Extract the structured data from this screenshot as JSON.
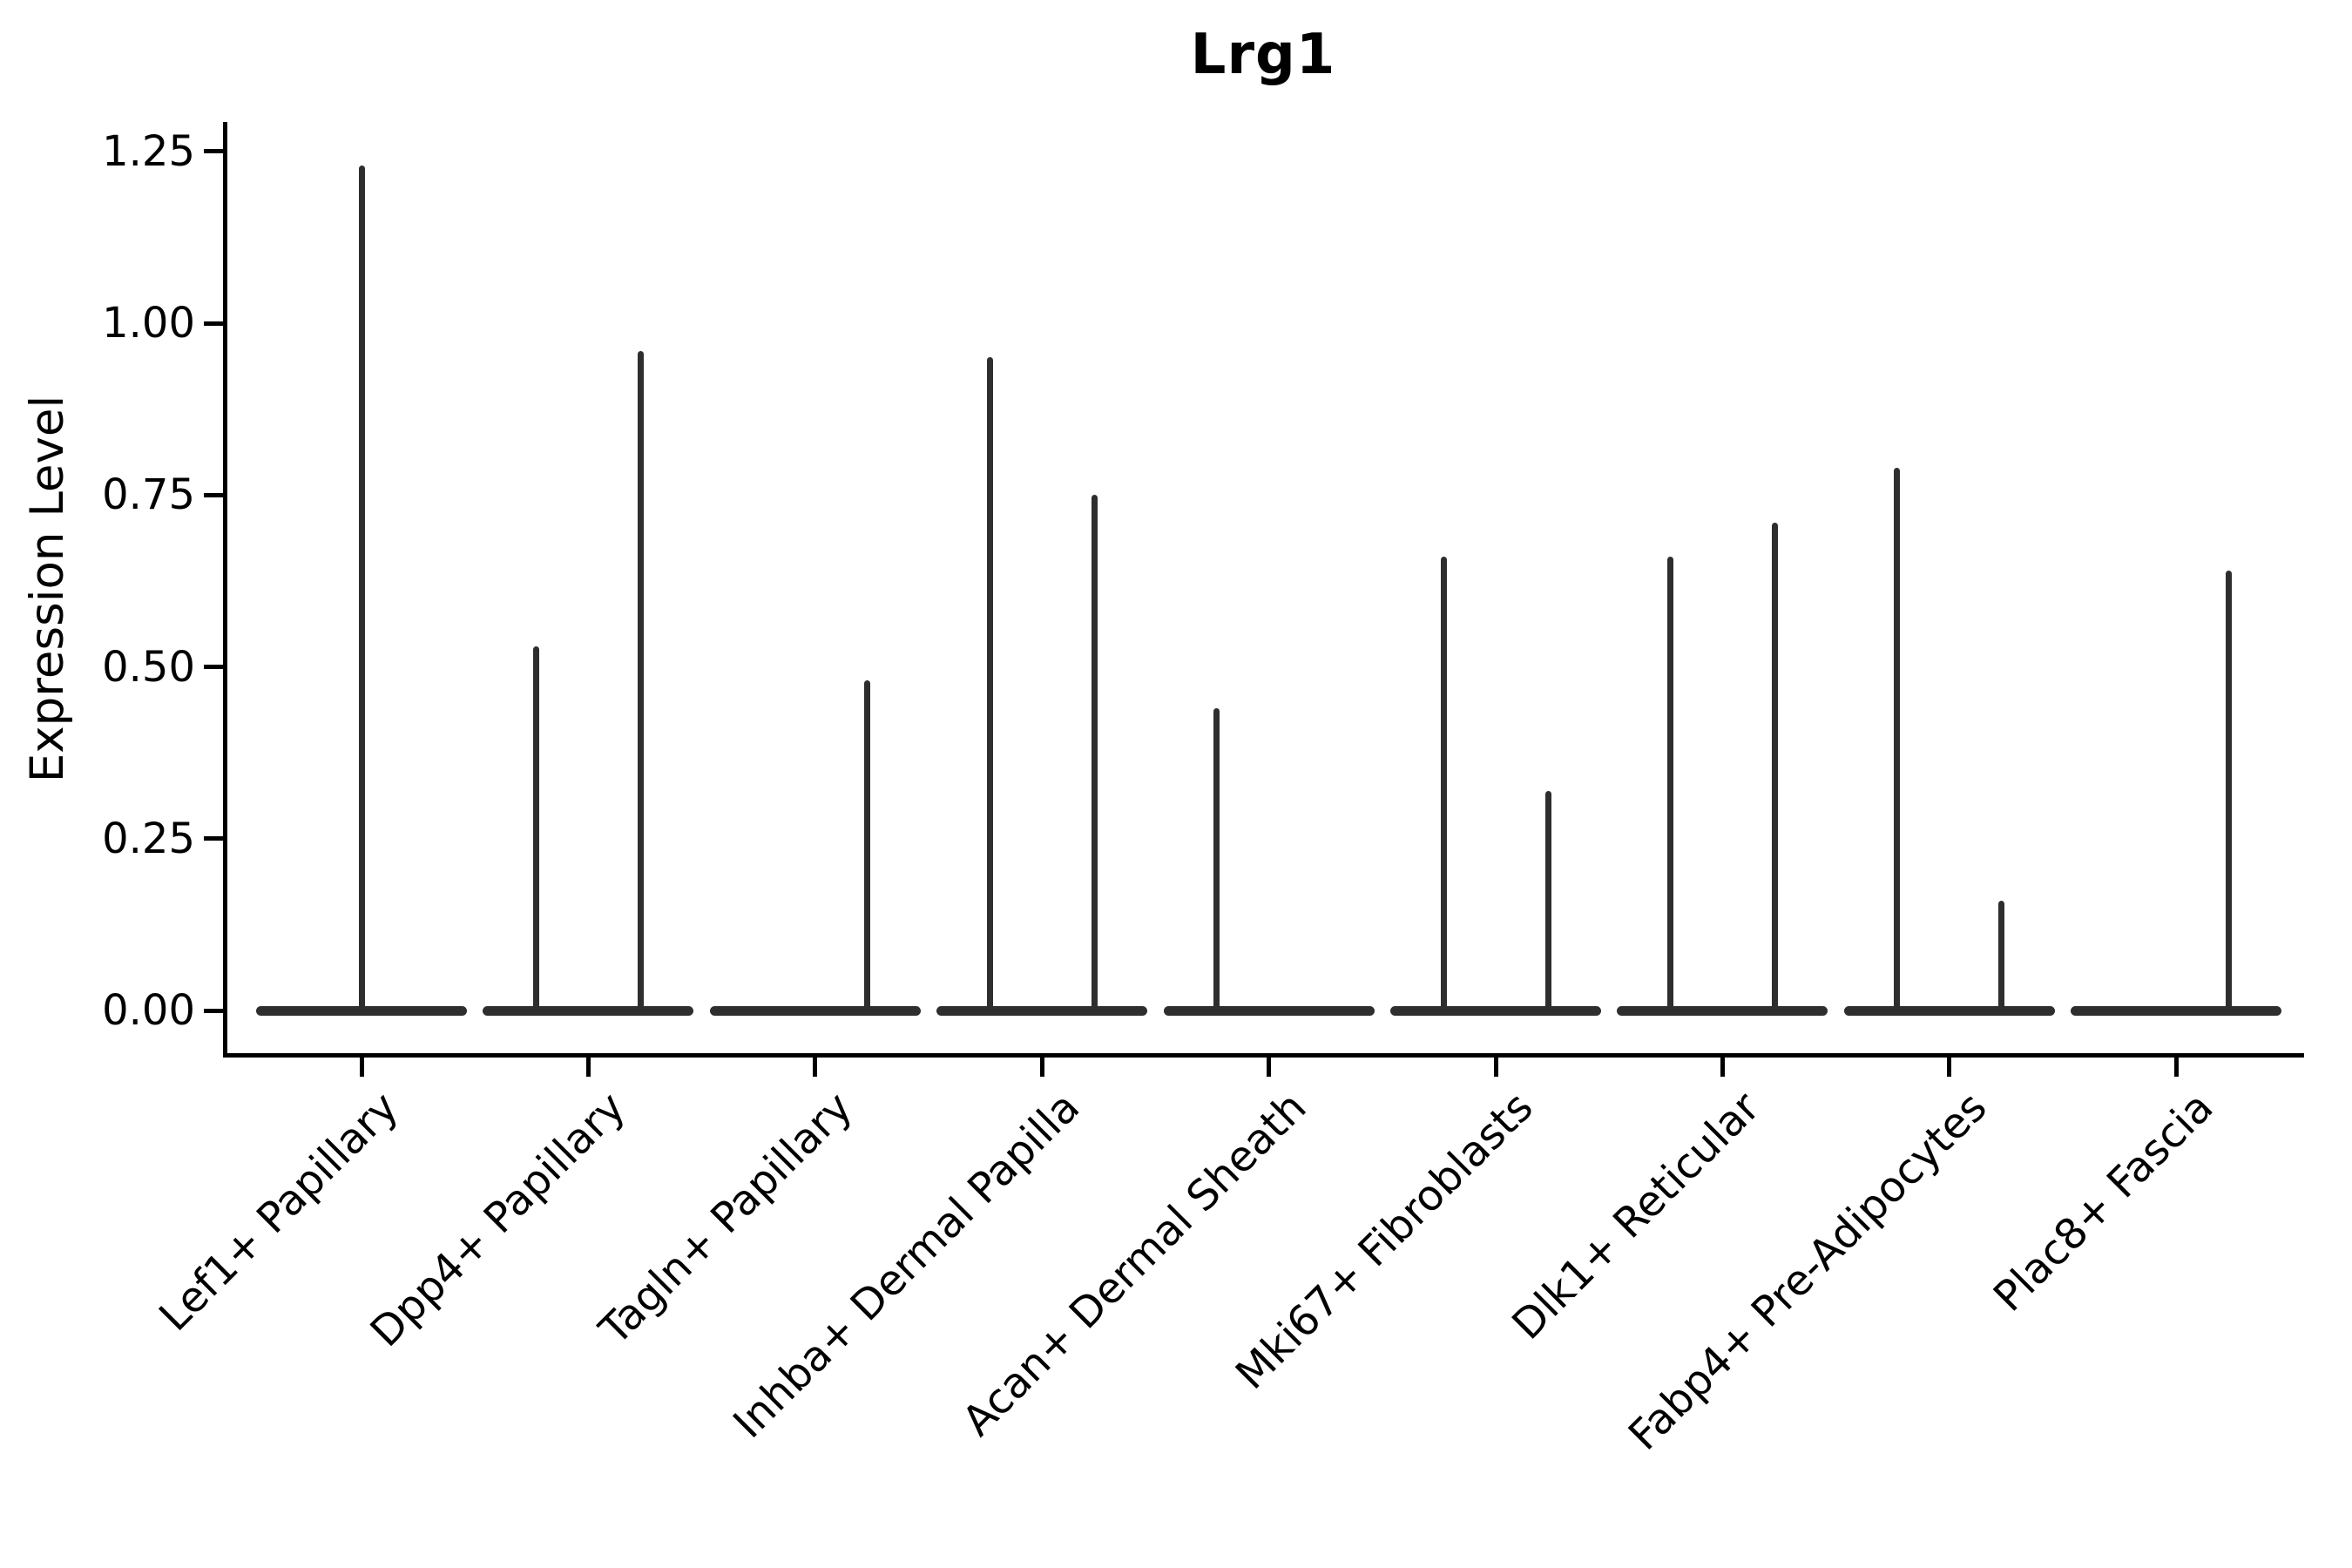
{
  "figure": {
    "background": "#ffffff"
  },
  "colors": {
    "violin": "#2e2e2e",
    "axis": "#000000",
    "text": "#000000"
  },
  "chart_data": {
    "type": "violin",
    "title": "Lrg1",
    "ylabel": "Expression Level",
    "xlabel": "",
    "grid": false,
    "legend": "none",
    "ylim": [
      -0.07,
      1.3
    ],
    "yticks": [
      0.0,
      0.25,
      0.5,
      0.75,
      1.0,
      1.25
    ],
    "ytick_labels": [
      "0.00",
      "0.25",
      "0.50",
      "0.75",
      "1.00",
      "1.25"
    ],
    "categories": [
      "Lef1+ Papillary",
      "Dpp4+ Papillary",
      "Tagln+ Papillary",
      "Inhba+ Dermal Papilla",
      "Acan+ Dermal Sheath",
      "Mki67+ Fibroblasts",
      "Dlk1+ Reticular",
      "Fabp4+ Pre-Adipocytes",
      "Plac8+ Fascia"
    ],
    "description": "Violin plot of Lrg1 expression; each cluster shows zero-inflated violins flattened at 0 with thin spikes rising to the maximum expression value.",
    "violins": [
      {
        "category": "Lef1+ Papillary",
        "spikes": [
          {
            "position": "center",
            "max": 1.23
          }
        ]
      },
      {
        "category": "Dpp4+ Papillary",
        "spikes": [
          {
            "position": "left",
            "max": 0.53
          },
          {
            "position": "right",
            "max": 0.96
          }
        ]
      },
      {
        "category": "Tagln+ Papillary",
        "spikes": [
          {
            "position": "right",
            "max": 0.48
          }
        ]
      },
      {
        "category": "Inhba+ Dermal Papilla",
        "spikes": [
          {
            "position": "left",
            "max": 0.95
          },
          {
            "position": "right",
            "max": 0.75
          }
        ]
      },
      {
        "category": "Acan+ Dermal Sheath",
        "spikes": [
          {
            "position": "left",
            "max": 0.44
          }
        ]
      },
      {
        "category": "Mki67+ Fibroblasts",
        "spikes": [
          {
            "position": "left",
            "max": 0.66
          },
          {
            "position": "right",
            "max": 0.32
          }
        ]
      },
      {
        "category": "Dlk1+ Reticular",
        "spikes": [
          {
            "position": "left",
            "max": 0.66
          },
          {
            "position": "right",
            "max": 0.71
          }
        ]
      },
      {
        "category": "Fabp4+ Pre-Adipocytes",
        "spikes": [
          {
            "position": "left",
            "max": 0.79
          },
          {
            "position": "right",
            "max": 0.16
          }
        ]
      },
      {
        "category": "Plac8+ Fascia",
        "spikes": [
          {
            "position": "right",
            "max": 0.64
          }
        ]
      }
    ]
  }
}
